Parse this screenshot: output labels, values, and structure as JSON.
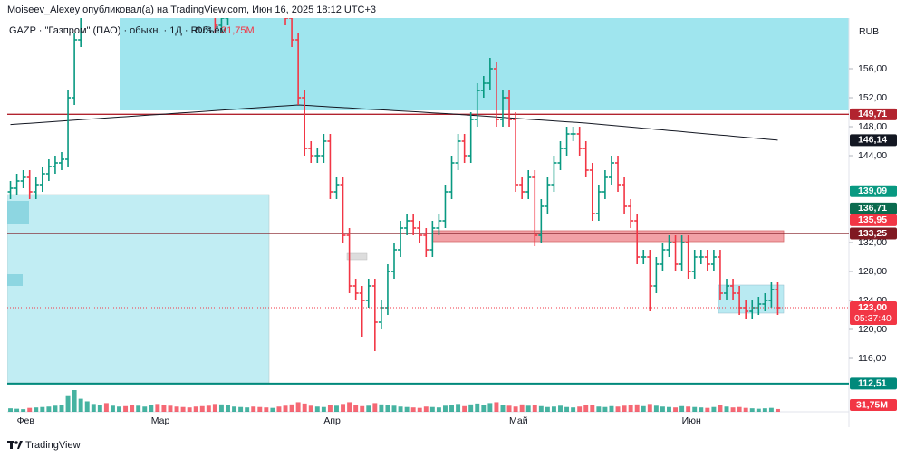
{
  "header": {
    "publisher": "Moiseev_Alexey опубликовал(а) на TradingView.com, Июн 16, 2025 18:12 UTC+3"
  },
  "footer": {
    "brand": "TradingView"
  },
  "chart_data": {
    "type": "ohlc",
    "legend": {
      "symbol": "GAZP · \"Газпром\" (ПАО) · обыкн. · 1Д · RUS",
      "volume_name": "Объём"
    },
    "currency": "RUB",
    "up_color": "#089981",
    "down_color": "#f23645",
    "categories": [
      null,
      "Фев",
      null,
      null,
      null,
      null,
      null,
      null,
      null,
      null,
      null,
      null,
      null,
      null,
      null,
      null,
      null,
      null,
      null,
      null,
      null,
      null,
      "Мар",
      null,
      null,
      null,
      null,
      null,
      null,
      null,
      null,
      null,
      null,
      null,
      null,
      null,
      null,
      null,
      null,
      null,
      null,
      null,
      null,
      null,
      null,
      null,
      null,
      null,
      null,
      "Апр",
      null,
      null,
      null,
      null,
      null,
      null,
      null,
      null,
      null,
      null,
      null,
      null,
      null,
      null,
      null,
      null,
      null,
      null,
      null,
      null,
      null,
      null,
      null,
      null,
      null,
      null,
      null,
      null,
      "Май",
      null,
      null,
      null,
      null,
      null,
      null,
      null,
      null,
      null,
      null,
      null,
      null,
      null,
      null,
      null,
      null,
      null,
      null,
      null,
      null,
      null,
      null,
      null,
      null,
      null,
      null,
      "Июн",
      null,
      null,
      null,
      null,
      null,
      null,
      null,
      null,
      null,
      null,
      null,
      null,
      null,
      null,
      null
    ],
    "open": [
      139,
      139.5,
      140.5,
      141,
      139,
      140,
      141.5,
      142.5,
      143,
      143.5,
      152,
      160,
      166,
      168,
      170,
      172,
      171,
      173,
      174,
      172,
      170,
      171,
      173,
      175,
      174,
      172,
      170,
      169,
      168,
      167,
      166,
      165,
      164,
      162,
      163,
      164,
      165,
      166,
      167,
      166,
      165,
      164,
      165,
      164,
      163,
      160,
      152,
      145,
      144,
      144,
      146,
      139,
      140,
      133,
      126,
      125,
      124,
      126,
      121,
      123,
      128,
      131,
      134,
      135,
      134,
      133,
      131,
      134,
      135,
      139,
      143,
      146,
      144,
      149,
      153,
      154,
      156,
      149,
      152,
      149,
      140,
      139,
      141,
      133,
      137,
      140,
      143,
      145,
      147,
      147,
      145,
      142,
      136,
      139,
      141,
      143,
      140,
      137,
      135,
      130,
      130,
      126,
      129,
      131,
      132,
      129,
      132,
      128,
      130,
      130,
      129,
      130,
      125,
      126,
      125,
      123,
      122.5,
      123,
      123.5,
      124,
      125.5
    ],
    "high": [
      140.5,
      141.5,
      142,
      142,
      141,
      142.5,
      143.5,
      144,
      144.5,
      153,
      161,
      167,
      169,
      171,
      173,
      173,
      174,
      175,
      175,
      173,
      172,
      174,
      176,
      176,
      175,
      173,
      171,
      170,
      169,
      168,
      167,
      166,
      165,
      164,
      165,
      166,
      167,
      168,
      168,
      167,
      166,
      166,
      166,
      165,
      164,
      161,
      153,
      146,
      145,
      147,
      147,
      141,
      141,
      134,
      127,
      126,
      127,
      127,
      124,
      129,
      132,
      135,
      136,
      136,
      135,
      134,
      135,
      136,
      140,
      144,
      147,
      147,
      150,
      154,
      155,
      157.5,
      157,
      153,
      153,
      150,
      141,
      142,
      142,
      138,
      141,
      144,
      146,
      148,
      148,
      148,
      146,
      143,
      140,
      142,
      144,
      144,
      141,
      138,
      136,
      131,
      131,
      130,
      132,
      133,
      133,
      133,
      133,
      131,
      131,
      131,
      131,
      131,
      127,
      127,
      126,
      124,
      124,
      124.5,
      125,
      126.5,
      126.5
    ],
    "low": [
      138,
      138.5,
      139.5,
      138,
      138,
      139,
      140.5,
      141.5,
      142,
      142.5,
      151,
      159,
      165,
      167,
      169,
      170,
      170,
      172,
      171,
      169,
      169,
      170,
      172,
      173,
      171,
      169,
      168,
      167,
      166,
      165,
      164,
      163,
      161,
      161,
      162,
      163,
      164,
      165,
      165,
      164,
      163,
      163,
      163,
      162,
      159,
      151,
      144,
      143,
      143,
      143,
      138,
      138,
      132,
      125,
      124,
      119,
      123,
      117,
      120,
      122,
      127,
      130,
      133,
      133,
      132,
      130,
      130,
      133,
      134,
      138,
      142,
      143,
      143,
      148,
      152,
      153,
      148,
      148,
      148,
      139,
      138,
      138,
      131.5,
      132,
      136,
      139,
      142,
      144,
      146,
      144,
      141,
      135,
      135,
      138,
      140,
      139,
      136,
      134,
      129,
      129,
      122.5,
      125,
      128,
      130,
      128,
      128,
      127,
      127,
      129,
      128,
      128,
      124,
      124,
      124,
      122,
      121.5,
      121.5,
      122,
      122.5,
      123,
      122
    ],
    "close": [
      139.5,
      140.5,
      141,
      139,
      140,
      141.5,
      142.5,
      143,
      143.5,
      152,
      160,
      166,
      168,
      170,
      172,
      171,
      173,
      174,
      172,
      170,
      171,
      173,
      175,
      174,
      172,
      170,
      169,
      168,
      167,
      166,
      165,
      164,
      162,
      163,
      164,
      165,
      166,
      167,
      166,
      165,
      164,
      165,
      164,
      163,
      160,
      152,
      145,
      144,
      144,
      146,
      139,
      140,
      133,
      126,
      125,
      124,
      126,
      121,
      123,
      128,
      131,
      134,
      135,
      134,
      133,
      131,
      134,
      135,
      139,
      143,
      146,
      144,
      149,
      153,
      154,
      156,
      149,
      152,
      149,
      140,
      139,
      141,
      133,
      137,
      140,
      143,
      145,
      147,
      147,
      145,
      142,
      136,
      139,
      141,
      143,
      140,
      137,
      135,
      130,
      130,
      126,
      129,
      131,
      132,
      129,
      132,
      128,
      130,
      130,
      129,
      130,
      125,
      126,
      125,
      123,
      122.5,
      123,
      123.5,
      124,
      125.5,
      123
    ],
    "volume": [
      40,
      35,
      30,
      45,
      50,
      55,
      60,
      70,
      80,
      180,
      250,
      150,
      120,
      90,
      80,
      100,
      70,
      60,
      65,
      80,
      70,
      60,
      75,
      90,
      80,
      70,
      60,
      55,
      50,
      60,
      65,
      70,
      90,
      85,
      75,
      60,
      55,
      50,
      60,
      55,
      50,
      45,
      60,
      70,
      85,
      110,
      95,
      70,
      60,
      55,
      80,
      70,
      90,
      110,
      80,
      65,
      70,
      100,
      85,
      75,
      70,
      60,
      55,
      50,
      45,
      60,
      55,
      50,
      70,
      80,
      90,
      65,
      85,
      95,
      80,
      100,
      110,
      75,
      70,
      60,
      85,
      70,
      80,
      65,
      55,
      60,
      70,
      55,
      50,
      60,
      75,
      80,
      60,
      55,
      65,
      60,
      70,
      75,
      85,
      65,
      90,
      70,
      60,
      55,
      50,
      65,
      60,
      55,
      50,
      45,
      55,
      75,
      60,
      50,
      55,
      45,
      40,
      35,
      40,
      45,
      31.75
    ],
    "volume_last_label": "31,75M",
    "moving_average": {
      "color": "#131722",
      "values": [
        148.3,
        148.36,
        148.42,
        148.48,
        148.54,
        148.6,
        148.66,
        148.72,
        148.78,
        148.84,
        148.9,
        148.96,
        149.02,
        149.08,
        149.14,
        149.2,
        149.26,
        149.32,
        149.38,
        149.44,
        149.5,
        149.56,
        149.62,
        149.68,
        149.74,
        149.8,
        149.86,
        149.92,
        149.98,
        150.04,
        150.1,
        150.16,
        150.22,
        150.28,
        150.34,
        150.4,
        150.46,
        150.52,
        150.58,
        150.64,
        150.7,
        150.76,
        150.82,
        150.88,
        150.94,
        151.0,
        150.95,
        150.9,
        150.85,
        150.8,
        150.74,
        150.69,
        150.64,
        150.59,
        150.54,
        150.48,
        150.43,
        150.38,
        150.33,
        150.28,
        150.22,
        150.17,
        150.12,
        150.07,
        150.02,
        149.96,
        149.91,
        149.86,
        149.81,
        149.76,
        149.7,
        149.64,
        149.58,
        149.52,
        149.46,
        149.4,
        149.34,
        149.28,
        149.22,
        149.16,
        149.1,
        149.04,
        148.98,
        148.92,
        148.86,
        148.8,
        148.74,
        148.68,
        148.62,
        148.56,
        148.5,
        148.42,
        148.34,
        148.26,
        148.19,
        148.11,
        148.03,
        147.95,
        147.87,
        147.79,
        147.71,
        147.63,
        147.56,
        147.48,
        147.4,
        147.32,
        147.24,
        147.16,
        147.08,
        147.0,
        146.93,
        146.85,
        146.77,
        146.69,
        146.61,
        146.53,
        146.45,
        146.37,
        146.3,
        146.22,
        146.14
      ]
    },
    "ylim": [
      112,
      163
    ],
    "yticks": [
      {
        "value": 156,
        "label": "156,00"
      },
      {
        "value": 152,
        "label": "152,00"
      },
      {
        "value": 148,
        "label": "148,00"
      },
      {
        "value": 144,
        "label": "144,00"
      },
      {
        "value": 132,
        "label": "132,00"
      },
      {
        "value": 128,
        "label": "128,00"
      },
      {
        "value": 124,
        "label": "124,00"
      },
      {
        "value": 120,
        "label": "120,00"
      },
      {
        "value": 116,
        "label": "116,00"
      }
    ],
    "levels": [
      {
        "value": 149.71,
        "label": "149,71",
        "color": "#b2242f",
        "line": true
      },
      {
        "value": 146.14,
        "label": "146,14",
        "color": "#131722",
        "line": false
      },
      {
        "value": 139.09,
        "label": "139,09",
        "color": "#089981",
        "line": false
      },
      {
        "value": 136.71,
        "label": "136,71",
        "color": "#0b6b4f",
        "line": false
      },
      {
        "value": 135.95,
        "label": "135,95",
        "color": "#f23645",
        "line": false
      },
      {
        "value": 133.25,
        "label": "133,25",
        "color": "#801922",
        "line": true
      },
      {
        "value": 112.51,
        "label": "112,51",
        "color": "#00897b",
        "line": true
      }
    ],
    "current_price": {
      "value": 123,
      "label": "123,00",
      "countdown": "05:37:40",
      "color": "#f23645"
    }
  }
}
